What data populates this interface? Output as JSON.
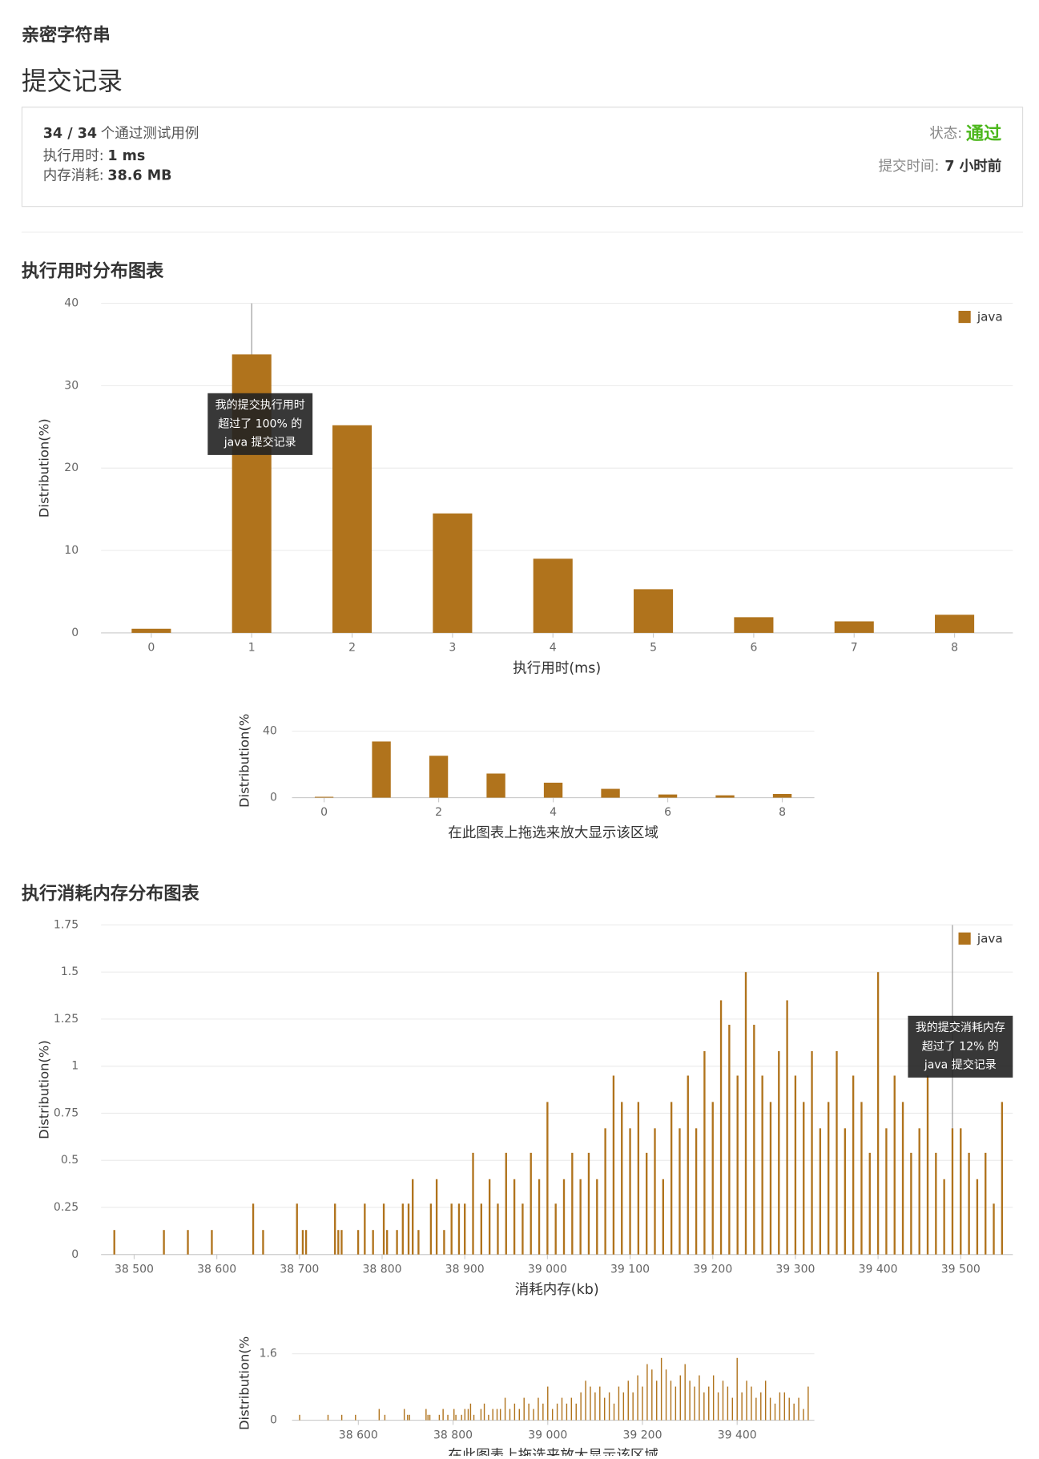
{
  "header": {
    "title": "亲密字符串",
    "subtitle": "提交记录"
  },
  "result": {
    "cases": "34 / 34",
    "cases_text": "个通过测试用例",
    "runtime_label": "执行用时:",
    "runtime": "1 ms",
    "memory_label": "内存消耗:",
    "memory": "38.6 MB",
    "status_label": "状态:",
    "status": "通过",
    "time_label": "提交时间:",
    "time": "7 小时前"
  },
  "chart_data": [
    {
      "type": "bar",
      "title": "执行用时分布图表",
      "xlabel": "执行用时(ms)",
      "ylabel": "Distribution(%)",
      "legend": "upper right",
      "grid": true,
      "x": [
        0,
        1,
        2,
        3,
        4,
        5,
        6,
        7,
        8
      ],
      "series": [
        {
          "name": "java",
          "color": "#b0731c",
          "values": [
            0.5,
            33.8,
            25.2,
            14.5,
            9,
            5.3,
            1.9,
            1.4,
            2.2
          ]
        }
      ],
      "xlim": [
        -0.5,
        8.58
      ],
      "ylim": [
        0,
        40
      ],
      "xticks": [
        0,
        1,
        2,
        3,
        4,
        5,
        6,
        7,
        8
      ],
      "yticks": [
        0,
        10,
        20,
        30,
        40
      ],
      "marker": 1,
      "tooltip": [
        "我的提交执行用时",
        "超过了 100% 的",
        "java 提交记录"
      ],
      "navigator": {
        "xlim": [
          -0.56,
          8.56
        ],
        "ylim": [
          0,
          40
        ],
        "xticks": [
          0,
          2,
          4,
          6,
          8
        ],
        "yticks": [
          0,
          40
        ],
        "ylabel": "Distribution(%",
        "caption": "在此图表上拖选来放大显示该区域"
      }
    },
    {
      "type": "bar",
      "title": "执行消耗内存分布图表",
      "xlabel": "消耗内存(kb)",
      "ylabel": "Distribution(%)",
      "legend": "upper right",
      "grid": true,
      "x": [
        38476,
        38536,
        38565,
        38594,
        38644,
        38656,
        38697,
        38704,
        38708,
        38743,
        38747,
        38751,
        38771,
        38779,
        38789,
        38802,
        38806,
        38818,
        38825,
        38832,
        38837,
        38844,
        38859,
        38866,
        38875,
        38884,
        38893,
        38900,
        38910,
        38920,
        38930,
        38940,
        38950,
        38960,
        38970,
        38980,
        38990,
        39000,
        39010,
        39020,
        39030,
        39040,
        39050,
        39060,
        39070,
        39080,
        39090,
        39100,
        39110,
        39120,
        39130,
        39140,
        39150,
        39160,
        39170,
        39180,
        39190,
        39200,
        39210,
        39220,
        39230,
        39240,
        39250,
        39260,
        39270,
        39280,
        39290,
        39300,
        39310,
        39320,
        39330,
        39340,
        39350,
        39360,
        39370,
        39380,
        39390,
        39400,
        39410,
        39420,
        39430,
        39440,
        39450,
        39460,
        39470,
        39480,
        39490,
        39500,
        39510,
        39520,
        39530,
        39540,
        39550
      ],
      "series": [
        {
          "name": "java",
          "color": "#b0731c",
          "values": [
            0.13,
            0.13,
            0.13,
            0.13,
            0.27,
            0.13,
            0.27,
            0.13,
            0.13,
            0.27,
            0.13,
            0.13,
            0.13,
            0.27,
            0.13,
            0.27,
            0.13,
            0.13,
            0.27,
            0.27,
            0.4,
            0.13,
            0.27,
            0.4,
            0.13,
            0.27,
            0.27,
            0.27,
            0.54,
            0.27,
            0.4,
            0.27,
            0.54,
            0.4,
            0.27,
            0.54,
            0.4,
            0.81,
            0.27,
            0.4,
            0.54,
            0.4,
            0.54,
            0.4,
            0.67,
            0.95,
            0.81,
            0.67,
            0.81,
            0.54,
            0.67,
            0.4,
            0.81,
            0.67,
            0.95,
            0.67,
            1.08,
            0.81,
            1.35,
            1.22,
            0.95,
            1.5,
            1.22,
            0.95,
            0.81,
            1.08,
            1.35,
            0.95,
            0.81,
            1.08,
            0.67,
            0.81,
            1.08,
            0.67,
            0.95,
            0.81,
            0.54,
            1.5,
            0.67,
            0.95,
            0.81,
            0.54,
            0.67,
            0.95,
            0.54,
            0.4,
            0.67,
            0.67,
            0.54,
            0.4,
            0.54,
            0.27,
            0.81
          ]
        }
      ],
      "xlim": [
        38460,
        39563
      ],
      "ylim": [
        0,
        1.75
      ],
      "xticks": [
        {
          "value": 38500,
          "label": "38 500"
        },
        {
          "value": 38600,
          "label": "38 600"
        },
        {
          "value": 38700,
          "label": "38 700"
        },
        {
          "value": 38800,
          "label": "38 800"
        },
        {
          "value": 38900,
          "label": "38 900"
        },
        {
          "value": 39000,
          "label": "39 000"
        },
        {
          "value": 39100,
          "label": "39 100"
        },
        {
          "value": 39200,
          "label": "39 200"
        },
        {
          "value": 39300,
          "label": "39 300"
        },
        {
          "value": 39400,
          "label": "39 400"
        },
        {
          "value": 39500,
          "label": "39 500"
        }
      ],
      "yticks": [
        0,
        0.25,
        0.5,
        0.75,
        1,
        1.25,
        1.5,
        1.75
      ],
      "marker": 39490,
      "tooltip": [
        "我的提交消耗内存",
        "超过了 12% 的",
        "java 提交记录"
      ],
      "navigator": {
        "xlim": [
          38460,
          39563
        ],
        "ylim": [
          0,
          1.6
        ],
        "xticks": [
          {
            "value": 38600,
            "label": "38 600"
          },
          {
            "value": 38800,
            "label": "38 800"
          },
          {
            "value": 39000,
            "label": "39 000"
          },
          {
            "value": 39200,
            "label": "39 200"
          },
          {
            "value": 39400,
            "label": "39 400"
          }
        ],
        "yticks": [
          0,
          1.6
        ],
        "ylabel": "Distribution(%",
        "caption": "在此图表上拖选来放大显示该区域"
      }
    }
  ]
}
